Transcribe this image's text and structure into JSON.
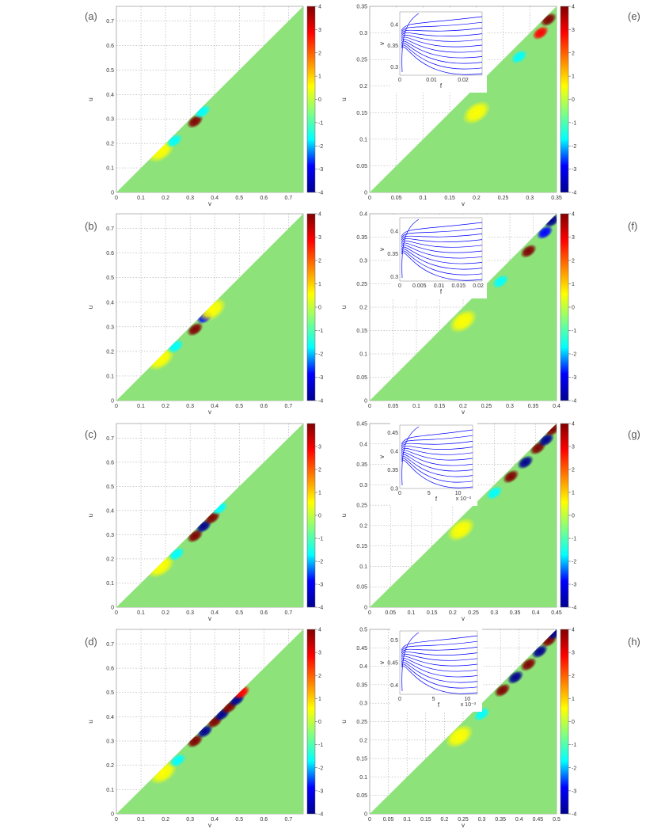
{
  "colormap": [
    "#00008f",
    "#0000ff",
    "#00ffff",
    "#80ff80",
    "#ffff00",
    "#ff8000",
    "#ff0000",
    "#800000"
  ],
  "field_color": "#8ee27a",
  "inset_line_color": "#0000ff",
  "chart_data": [
    {
      "type": "heatmap",
      "panel": "(a)",
      "xlabel": "v",
      "ylabel": "u",
      "xlim": [
        0,
        0.76
      ],
      "ylim": [
        0,
        0.76
      ],
      "xticks": [
        "0",
        "0.1",
        "0.2",
        "0.3",
        "0.4",
        "0.5",
        "0.6",
        "0.7"
      ],
      "yticks": [
        "0",
        "0.1",
        "0.2",
        "0.3",
        "0.4",
        "0.5",
        "0.6",
        "0.7"
      ],
      "colorbar": {
        "ticks": [
          "-4",
          "-3",
          "-2",
          "-1",
          "0",
          "1",
          "2",
          "3",
          "4"
        ],
        "range": [
          -4,
          4
        ]
      },
      "features": [
        {
          "v": 0.18,
          "u": 0.17,
          "value": 0.7
        },
        {
          "v": 0.235,
          "u": 0.21,
          "value": -1.2
        },
        {
          "v": 0.32,
          "u": 0.29,
          "value": 3.6
        },
        {
          "v": 0.35,
          "u": 0.33,
          "value": -1.4
        }
      ]
    },
    {
      "type": "heatmap",
      "panel": "(b)",
      "xlabel": "v",
      "ylabel": "u",
      "xlim": [
        0,
        0.76
      ],
      "ylim": [
        0,
        0.76
      ],
      "xticks": [
        "0",
        "0.1",
        "0.2",
        "0.3",
        "0.4",
        "0.5",
        "0.6",
        "0.7"
      ],
      "yticks": [
        "0",
        "0.1",
        "0.2",
        "0.3",
        "0.4",
        "0.5",
        "0.6",
        "0.7"
      ],
      "colorbar": {
        "ticks": [
          "-4",
          "-3",
          "-2",
          "-1",
          "0",
          "1",
          "2",
          "3",
          "4"
        ],
        "range": [
          -4,
          4
        ]
      },
      "features": [
        {
          "v": 0.18,
          "u": 0.17,
          "value": 0.7
        },
        {
          "v": 0.24,
          "u": 0.22,
          "value": -1.2
        },
        {
          "v": 0.32,
          "u": 0.29,
          "value": 3.8
        },
        {
          "v": 0.36,
          "u": 0.34,
          "value": -2.8
        },
        {
          "v": 0.39,
          "u": 0.37,
          "value": 0.8
        }
      ]
    },
    {
      "type": "heatmap",
      "panel": "(c)",
      "xlabel": "v",
      "ylabel": "u",
      "xlim": [
        0,
        0.76
      ],
      "ylim": [
        0,
        0.76
      ],
      "xticks": [
        "0",
        "0.1",
        "0.2",
        "0.3",
        "0.4",
        "0.5",
        "0.6",
        "0.7"
      ],
      "yticks": [
        "0",
        "0.1",
        "0.2",
        "0.3",
        "0.4",
        "0.5",
        "0.6",
        "0.7"
      ],
      "colorbar": {
        "ticks": [
          "-4",
          "-3",
          "-2",
          "-1",
          "0",
          "1",
          "2",
          "3"
        ],
        "range": [
          -4,
          4
        ]
      },
      "features": [
        {
          "v": 0.18,
          "u": 0.17,
          "value": 0.7
        },
        {
          "v": 0.245,
          "u": 0.22,
          "value": -1.3
        },
        {
          "v": 0.32,
          "u": 0.295,
          "value": 3.6
        },
        {
          "v": 0.355,
          "u": 0.335,
          "value": -3.5
        },
        {
          "v": 0.39,
          "u": 0.37,
          "value": 3.9
        },
        {
          "v": 0.42,
          "u": 0.41,
          "value": -1.5
        }
      ]
    },
    {
      "type": "heatmap",
      "panel": "(d)",
      "xlabel": "v",
      "ylabel": "u",
      "xlim": [
        0,
        0.76
      ],
      "ylim": [
        0,
        0.76
      ],
      "xticks": [
        "0",
        "0.1",
        "0.2",
        "0.3",
        "0.4",
        "0.5",
        "0.6",
        "0.7"
      ],
      "yticks": [
        "0",
        "0.1",
        "0.2",
        "0.3",
        "0.4",
        "0.5",
        "0.6",
        "0.7"
      ],
      "colorbar": {
        "ticks": [
          "-4",
          "-3",
          "-2",
          "-1",
          "0",
          "1",
          "2",
          "3",
          "4"
        ],
        "range": [
          -4,
          4
        ]
      },
      "features": [
        {
          "v": 0.19,
          "u": 0.17,
          "value": 0.7
        },
        {
          "v": 0.25,
          "u": 0.22,
          "value": -1.3
        },
        {
          "v": 0.32,
          "u": 0.3,
          "value": 3.8
        },
        {
          "v": 0.36,
          "u": 0.34,
          "value": -3.6
        },
        {
          "v": 0.4,
          "u": 0.38,
          "value": 4.0
        },
        {
          "v": 0.43,
          "u": 0.41,
          "value": -4.0
        },
        {
          "v": 0.46,
          "u": 0.44,
          "value": 4.0
        },
        {
          "v": 0.49,
          "u": 0.47,
          "value": -4.0
        },
        {
          "v": 0.51,
          "u": 0.5,
          "value": 2.5
        }
      ]
    },
    {
      "type": "heatmap",
      "panel": "(e)",
      "xlabel": "v",
      "ylabel": "u",
      "xlim": [
        0,
        0.35
      ],
      "ylim": [
        0,
        0.35
      ],
      "xticks": [
        "0",
        "0.05",
        "0.1",
        "0.15",
        "0.2",
        "0.25",
        "0.3",
        "0.35"
      ],
      "yticks": [
        "0",
        "0.05",
        "0.1",
        "0.15",
        "0.2",
        "0.25",
        "0.3",
        "0.35"
      ],
      "colorbar": {
        "ticks": [
          "-4",
          "-3",
          "-2",
          "-1",
          "0",
          "1",
          "2",
          "3",
          "4"
        ],
        "range": [
          -4,
          4
        ]
      },
      "features": [
        {
          "v": 0.2,
          "u": 0.15,
          "value": 0.8
        },
        {
          "v": 0.28,
          "u": 0.255,
          "value": -1.4
        },
        {
          "v": 0.32,
          "u": 0.3,
          "value": 3.0
        },
        {
          "v": 0.335,
          "u": 0.325,
          "value": 4.0
        }
      ],
      "inset": {
        "xlabel": "f",
        "ylabel": "v",
        "xticks": [
          "0",
          "0.01",
          "0.02"
        ],
        "yticks": [
          "0.3",
          "0.35",
          "0.4"
        ],
        "xlim": [
          0,
          0.026
        ],
        "ylim": [
          0.28,
          0.43
        ]
      }
    },
    {
      "type": "heatmap",
      "panel": "(f)",
      "xlabel": "v",
      "ylabel": "u",
      "xlim": [
        0,
        0.4
      ],
      "ylim": [
        0,
        0.4
      ],
      "xticks": [
        "0",
        "0.05",
        "0.1",
        "0.15",
        "0.2",
        "0.25",
        "0.3",
        "0.35",
        "0.4"
      ],
      "yticks": [
        "0",
        "0.05",
        "0.1",
        "0.15",
        "0.2",
        "0.25",
        "0.3",
        "0.35",
        "0.4"
      ],
      "colorbar": {
        "ticks": [
          "-4",
          "-3",
          "-2",
          "-1",
          "0",
          "1",
          "2",
          "3",
          "4"
        ],
        "range": [
          -4,
          4
        ]
      },
      "features": [
        {
          "v": 0.2,
          "u": 0.17,
          "value": 0.8
        },
        {
          "v": 0.28,
          "u": 0.255,
          "value": -1.3
        },
        {
          "v": 0.34,
          "u": 0.32,
          "value": 3.8
        },
        {
          "v": 0.375,
          "u": 0.36,
          "value": -3.4
        },
        {
          "v": 0.39,
          "u": 0.385,
          "value": -4.0
        }
      ],
      "inset": {
        "xlabel": "f",
        "ylabel": "v",
        "xticks": [
          "0",
          "0.005",
          "0.01",
          "0.015",
          "0.02"
        ],
        "yticks": [
          "0.3",
          "0.35",
          "0.4"
        ],
        "xlim": [
          0,
          0.021
        ],
        "ylim": [
          0.29,
          0.43
        ]
      }
    },
    {
      "type": "heatmap",
      "panel": "(g)",
      "xlabel": "v",
      "ylabel": "u",
      "xlim": [
        0,
        0.45
      ],
      "ylim": [
        0,
        0.45
      ],
      "xticks": [
        "0",
        "0.05",
        "0.1",
        "0.15",
        "0.2",
        "0.25",
        "0.3",
        "0.35",
        "0.4",
        "0.45"
      ],
      "yticks": [
        "0",
        "0.05",
        "0.1",
        "0.15",
        "0.2",
        "0.25",
        "0.3",
        "0.35",
        "0.4",
        "0.45"
      ],
      "colorbar": {
        "ticks": [
          "-4",
          "-3",
          "-2",
          "-1",
          "0",
          "1",
          "2",
          "3",
          "4"
        ],
        "range": [
          -4,
          4
        ]
      },
      "features": [
        {
          "v": 0.22,
          "u": 0.19,
          "value": 0.8
        },
        {
          "v": 0.3,
          "u": 0.28,
          "value": -1.4
        },
        {
          "v": 0.34,
          "u": 0.32,
          "value": 3.8
        },
        {
          "v": 0.375,
          "u": 0.355,
          "value": -3.5
        },
        {
          "v": 0.405,
          "u": 0.39,
          "value": 3.9
        },
        {
          "v": 0.425,
          "u": 0.41,
          "value": -4.0
        },
        {
          "v": 0.44,
          "u": 0.435,
          "value": 4.0
        }
      ],
      "inset": {
        "xlabel": "f",
        "ylabel": "v",
        "multiplier": "x 10⁻³",
        "xticks": [
          "0",
          "5",
          "10"
        ],
        "yticks": [
          "0.3",
          "0.35",
          "0.4",
          "0.45"
        ],
        "xlim": [
          0,
          12.5
        ],
        "ylim": [
          0.3,
          0.47
        ]
      }
    },
    {
      "type": "heatmap",
      "panel": "(h)",
      "xlabel": "v",
      "ylabel": "u",
      "xlim": [
        0,
        0.5
      ],
      "ylim": [
        0,
        0.5
      ],
      "xticks": [
        "0",
        "0.05",
        "0.1",
        "0.15",
        "0.2",
        "0.25",
        "0.3",
        "0.35",
        "0.4",
        "0.45",
        "0.5"
      ],
      "yticks": [
        "0",
        "0.05",
        "0.1",
        "0.15",
        "0.2",
        "0.25",
        "0.3",
        "0.35",
        "0.4",
        "0.45",
        "0.5"
      ],
      "colorbar": {
        "ticks": [
          "-4",
          "-3",
          "-2",
          "-1",
          "0",
          "1",
          "2",
          "3",
          "4"
        ],
        "range": [
          -4,
          4
        ]
      },
      "features": [
        {
          "v": 0.24,
          "u": 0.21,
          "value": 0.8
        },
        {
          "v": 0.3,
          "u": 0.27,
          "value": -1.4
        },
        {
          "v": 0.355,
          "u": 0.335,
          "value": 3.8
        },
        {
          "v": 0.39,
          "u": 0.37,
          "value": -3.6
        },
        {
          "v": 0.425,
          "u": 0.405,
          "value": 4.0
        },
        {
          "v": 0.455,
          "u": 0.44,
          "value": -4.0
        },
        {
          "v": 0.48,
          "u": 0.47,
          "value": 4.0
        },
        {
          "v": 0.495,
          "u": 0.49,
          "value": -4.0
        }
      ],
      "inset": {
        "xlabel": "f",
        "ylabel": "v",
        "multiplier": "x 10⁻³",
        "xticks": [
          "0",
          "5",
          "10"
        ],
        "yticks": [
          "0.4",
          "0.45",
          "0.5"
        ],
        "xlim": [
          0,
          11.5
        ],
        "ylim": [
          0.38,
          0.52
        ]
      }
    }
  ]
}
